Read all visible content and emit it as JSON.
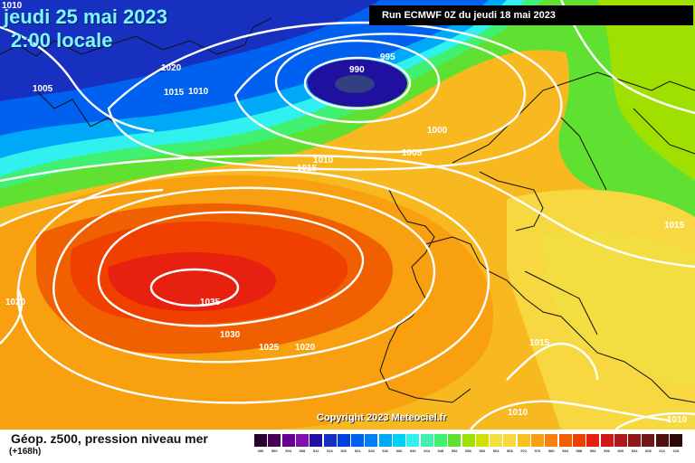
{
  "header": {
    "date": "jeudi 25 mai 2023",
    "time": "2:00 locale",
    "run": "Run ECMWF 0Z du jeudi 18 mai 2023"
  },
  "footer": {
    "title": "Géop. z500, pression niveau mer",
    "lead": "(+168h)",
    "copyright": "Copyright 2023 Meteociel.fr"
  },
  "isobars": [
    "1010",
    "1020",
    "1005",
    "1015",
    "1010",
    "995",
    "990",
    "1000",
    "1005",
    "1010",
    "1015",
    "1015",
    "1020",
    "1035",
    "1030",
    "1025",
    "1020",
    "1015",
    "1010",
    "1010"
  ],
  "scale": {
    "labels": [
      "496",
      "500",
      "504",
      "508",
      "512",
      "516",
      "520",
      "524",
      "528",
      "532",
      "536",
      "540",
      "544",
      "548",
      "552",
      "556",
      "560",
      "564",
      "568",
      "572",
      "576",
      "580",
      "584",
      "588",
      "592",
      "596",
      "600",
      "604",
      "608",
      "612",
      "616"
    ],
    "colors": [
      "#2a0030",
      "#4a0058",
      "#6a0090",
      "#8010b0",
      "#2010a0",
      "#1830c0",
      "#0040e0",
      "#0060f0",
      "#0080f8",
      "#00a8f8",
      "#00d0f8",
      "#30f0f0",
      "#40f0b0",
      "#40f070",
      "#60e030",
      "#a0e000",
      "#d0e000",
      "#f0e040",
      "#f8d840",
      "#f8c020",
      "#f8a010",
      "#f88010",
      "#f06000",
      "#f04000",
      "#e82010",
      "#d01818",
      "#b01818",
      "#901818",
      "#701818",
      "#501010",
      "#300808"
    ]
  }
}
